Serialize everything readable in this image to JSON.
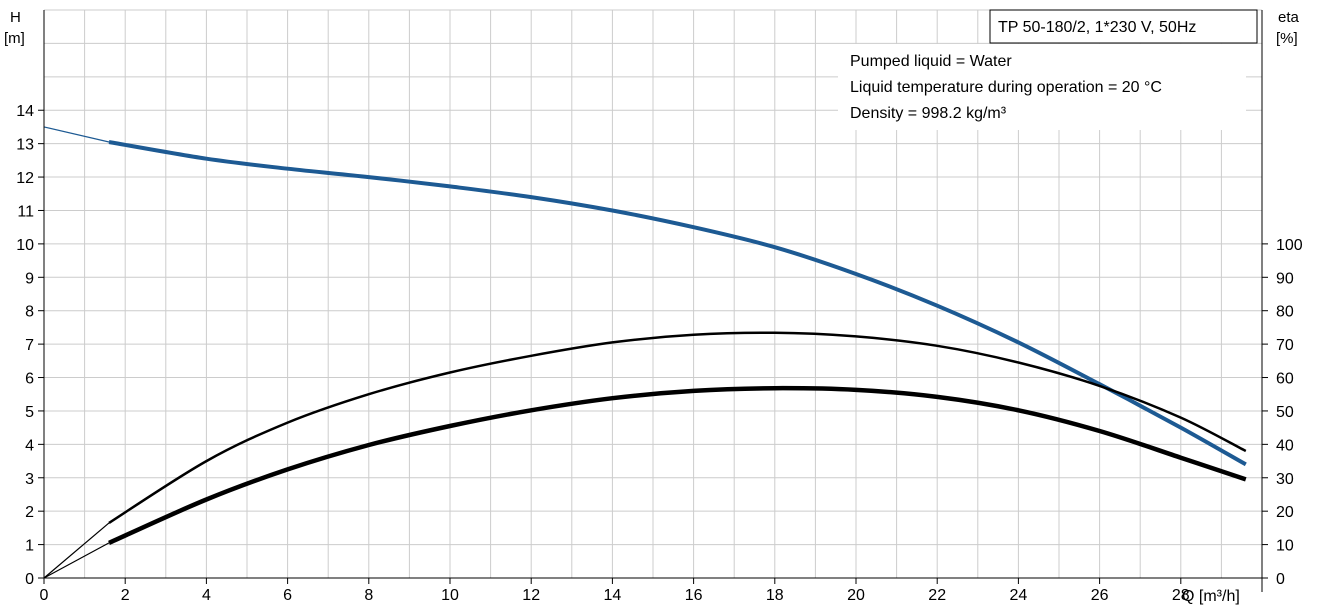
{
  "chart_data": {
    "type": "line",
    "title": "TP 50-180/2, 1*230 V, 50Hz",
    "info_lines": [
      "Pumped liquid = Water",
      "Liquid temperature during operation = 20 °C",
      "Density = 998.2 kg/m³"
    ],
    "x_axis": {
      "label": "Q [m³/h]",
      "range": [
        0,
        30
      ],
      "ticks": [
        0,
        2,
        4,
        6,
        8,
        10,
        12,
        14,
        16,
        18,
        20,
        22,
        24,
        26,
        28
      ]
    },
    "y_left": {
      "label_top": "H",
      "label_unit": "[m]",
      "range": [
        0,
        17
      ],
      "ticks": [
        0,
        1,
        2,
        3,
        4,
        5,
        6,
        7,
        8,
        9,
        10,
        11,
        12,
        13,
        14
      ]
    },
    "y_right": {
      "label_top": "eta",
      "label_unit": "[%]",
      "range": [
        0,
        170
      ],
      "ticks": [
        0,
        10,
        20,
        30,
        40,
        50,
        60,
        70,
        80,
        90,
        100
      ]
    },
    "grid": true,
    "series": [
      {
        "axis": "left",
        "color": "#1d5a93",
        "extrapolated_start": {
          "x": [
            0,
            1.6
          ],
          "y": [
            13.5,
            13.05
          ]
        },
        "x": [
          1.6,
          4,
          6,
          8,
          10,
          12,
          14,
          16,
          18,
          20,
          22,
          24,
          26,
          28,
          29.6
        ],
        "y": [
          13.05,
          12.55,
          12.25,
          12.0,
          11.72,
          11.4,
          11.0,
          10.5,
          9.9,
          9.1,
          8.15,
          7.05,
          5.8,
          4.5,
          3.4
        ]
      },
      {
        "axis": "right",
        "color": "#000000",
        "extrapolated_start": {
          "x": [
            0,
            1.6
          ],
          "y": [
            0,
            16.5
          ]
        },
        "x": [
          1.6,
          4,
          6,
          8,
          10,
          12,
          14,
          16,
          18,
          20,
          22,
          24,
          26,
          28,
          29.6
        ],
        "y": [
          16.5,
          35,
          46.5,
          55,
          61.5,
          66.5,
          70.5,
          72.8,
          73.4,
          72.3,
          69.5,
          64.5,
          57.5,
          48,
          38
        ]
      },
      {
        "axis": "right",
        "color": "#000000",
        "extrapolated_start": {
          "x": [
            0,
            1.6
          ],
          "y": [
            0,
            10.5
          ]
        },
        "x": [
          1.6,
          4,
          6,
          8,
          10,
          12,
          14,
          16,
          18,
          20,
          22,
          24,
          26,
          28,
          29.6
        ],
        "y": [
          10.5,
          23.5,
          32.5,
          39.8,
          45.5,
          50.2,
          53.8,
          56,
          56.8,
          56.3,
          54.2,
          50.2,
          44,
          36,
          29.5
        ]
      }
    ]
  }
}
